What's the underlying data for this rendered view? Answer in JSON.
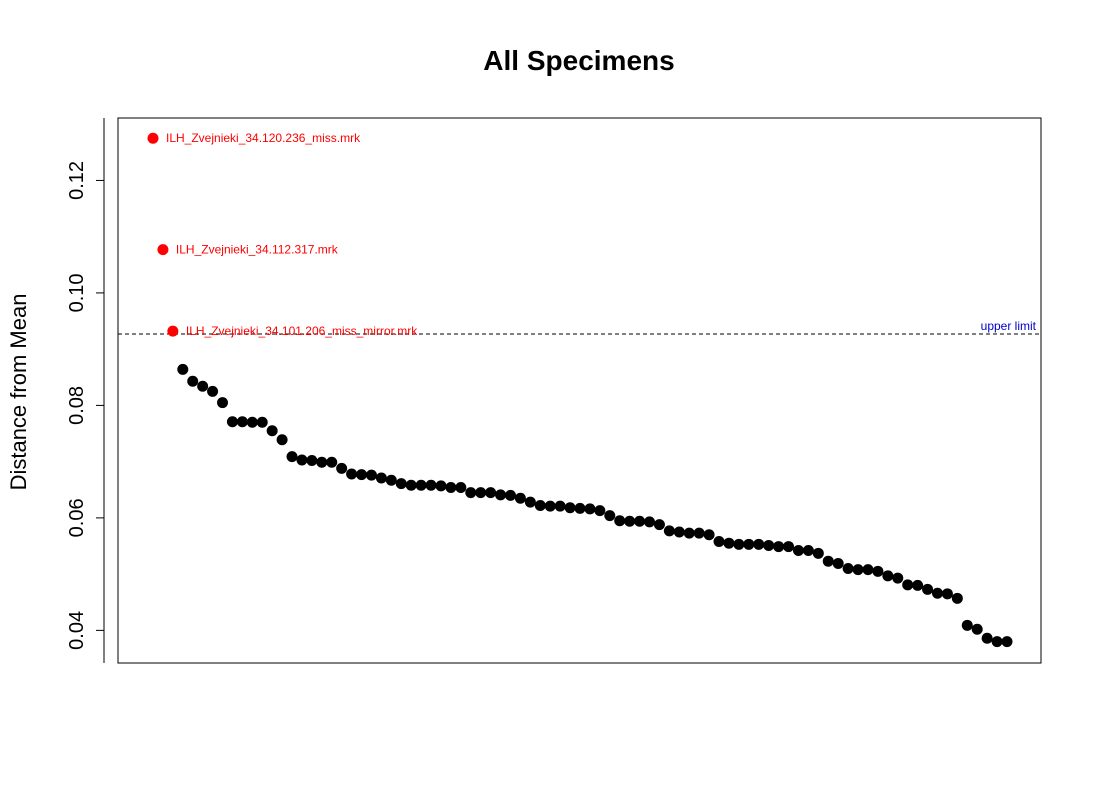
{
  "chart_data": {
    "type": "scatter",
    "title": "All Specimens",
    "xlabel": "",
    "ylabel": "Distance from Mean",
    "yticks": [
      "0.04",
      "0.06",
      "0.08",
      "0.10",
      "0.12"
    ],
    "ylim": [
      0.0342,
      0.1311
    ],
    "grid": false,
    "outlier_color": "#ff0000",
    "point_color": "#000000",
    "limit_color": "#0000cd",
    "upper_limit": {
      "label": "upper limit",
      "value": 0.0927
    },
    "outliers": [
      {
        "label": "ILH_Zvejnieki_34.120.236_miss.mrk",
        "value": 0.1275
      },
      {
        "label": "ILH_Zvejnieki_34.112.317.mrk",
        "value": 0.1077
      },
      {
        "label": "ILH_Zvejnieki_34.101.206_miss_mirror.mrk",
        "value": 0.0932
      }
    ],
    "values": [
      0.1275,
      0.1077,
      0.0932,
      0.0864,
      0.0843,
      0.0834,
      0.0825,
      0.0805,
      0.0771,
      0.0771,
      0.077,
      0.077,
      0.0755,
      0.0739,
      0.0709,
      0.0703,
      0.0702,
      0.0699,
      0.0699,
      0.0688,
      0.0678,
      0.0677,
      0.0676,
      0.0671,
      0.0667,
      0.0661,
      0.0658,
      0.0658,
      0.0658,
      0.0657,
      0.0654,
      0.0654,
      0.0645,
      0.0645,
      0.0645,
      0.0641,
      0.064,
      0.0635,
      0.0628,
      0.0622,
      0.0621,
      0.0621,
      0.0618,
      0.0617,
      0.0616,
      0.0613,
      0.0604,
      0.0595,
      0.0594,
      0.0594,
      0.0593,
      0.0588,
      0.0577,
      0.0575,
      0.0573,
      0.0573,
      0.057,
      0.0558,
      0.0555,
      0.0553,
      0.0553,
      0.0553,
      0.0551,
      0.0549,
      0.0549,
      0.0542,
      0.0542,
      0.0537,
      0.0523,
      0.0519,
      0.051,
      0.0508,
      0.0508,
      0.0505,
      0.0497,
      0.0493,
      0.0481,
      0.048,
      0.0473,
      0.0466,
      0.0465,
      0.0457,
      0.0409,
      0.0402,
      0.0386,
      0.038,
      0.038
    ]
  }
}
